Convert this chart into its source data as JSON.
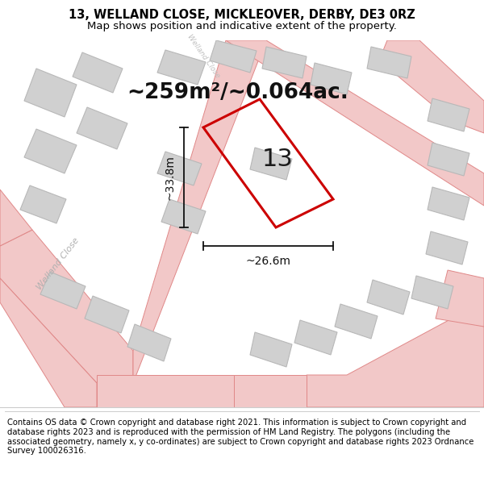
{
  "title_line1": "13, WELLAND CLOSE, MICKLEOVER, DERBY, DE3 0RZ",
  "title_line2": "Map shows position and indicative extent of the property.",
  "area_text": "~259m²/~0.064ac.",
  "label_number": "13",
  "dim_vertical": "~33.8m",
  "dim_horizontal": "~26.6m",
  "footer_text": "Contains OS data © Crown copyright and database right 2021. This information is subject to Crown copyright and database rights 2023 and is reproduced with the permission of HM Land Registry. The polygons (including the associated geometry, namely x, y co-ordinates) are subject to Crown copyright and database rights 2023 Ordnance Survey 100026316.",
  "bg_color": "#ffffff",
  "map_bg": "#f5f5f5",
  "road_fill": "#f2c8c8",
  "road_edge": "#e08888",
  "building_fill": "#d0d0d0",
  "building_edge": "#b8b8b8",
  "property_color": "#cc0000",
  "dim_color": "#111111",
  "title_fontsize": 10.5,
  "subtitle_fontsize": 9.5,
  "area_fontsize": 19,
  "label_fontsize": 22,
  "dim_fontsize": 10,
  "footer_fontsize": 7.2,
  "road_label_color": "#b0b0b0",
  "road_label_size": 8
}
